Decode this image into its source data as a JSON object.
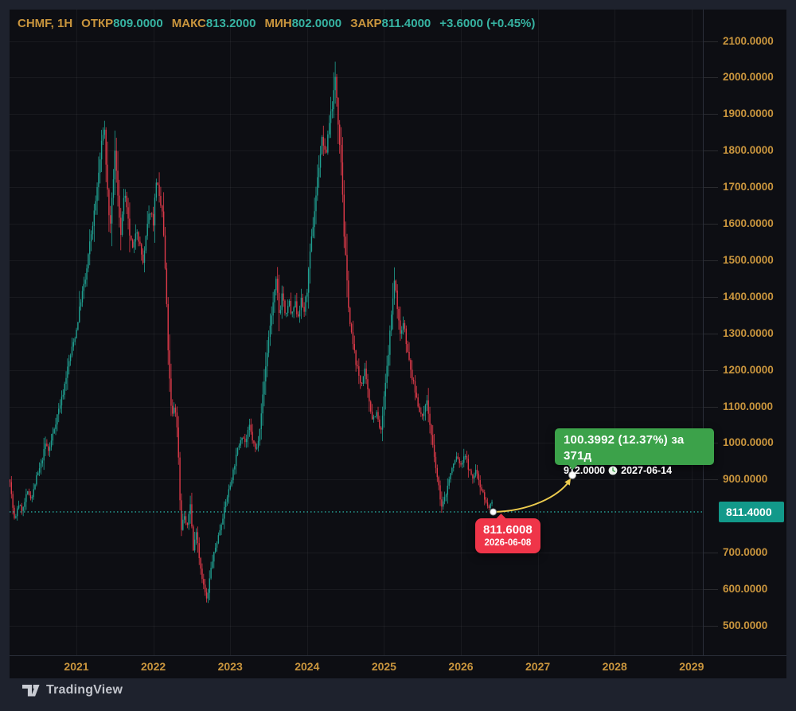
{
  "header": {
    "symbol_interval": "CHMF, 1Н",
    "open_label": "ОТКР",
    "open": "809.0000",
    "high_label": "МАКС",
    "high": "813.2000",
    "low_label": "МИН",
    "low": "802.0000",
    "close_label": "ЗАКР",
    "close": "811.4000",
    "change": "+3.6000 (+0.45%)"
  },
  "price_tag": "811.4000",
  "watermark": "TradingView",
  "forecast": {
    "tooltip_line1": "100.3992 (12.37%) за 371д",
    "tooltip_price": "912.0000",
    "tooltip_date": "2027-06-14",
    "source_price": "811.6008",
    "source_date": "2026-06-08",
    "source_time": 2026.42,
    "source_value": 811.4,
    "target_time": 2027.45,
    "target_value": 912.0
  },
  "colors": {
    "frame_bg": "#1e222d",
    "chart_bg": "#0d0e13",
    "axis_text": "#c9953d",
    "header_value": "#36b3a2",
    "candle_up": "#20a192",
    "candle_down": "#de3a49",
    "grid": "rgba(255,255,255,0.05)",
    "axis_border": "#2a2e39",
    "dotted_line": "#26a69a",
    "price_tag_bg": "#12998a",
    "tooltip_green_bg": "#3ca24a",
    "label_red_bg": "#ef3549",
    "forecast_curve": "#eccb4e",
    "logo_text": "#c2c5cc"
  },
  "chart_data": {
    "type": "candlestick",
    "title": "CHMF, 1Н",
    "interval_label": "1Н",
    "grid": true,
    "x_ticks": [
      2021,
      2022,
      2023,
      2024,
      2025,
      2026,
      2027,
      2028,
      2029
    ],
    "x_tick_labels": [
      "2021",
      "2022",
      "2023",
      "2024",
      "2025",
      "2026",
      "2027",
      "2028",
      "2029"
    ],
    "y_ticks": [
      2100,
      2000,
      1900,
      1800,
      1700,
      1600,
      1500,
      1400,
      1300,
      1200,
      1100,
      1000,
      900,
      811.4,
      700,
      600,
      500
    ],
    "y_tick_labels": [
      "2100.0000",
      "2000.0000",
      "1900.0000",
      "1800.0000",
      "1700.0000",
      "1600.0000",
      "1500.0000",
      "1400.0000",
      "1300.0000",
      "1200.0000",
      "1100.0000",
      "1000.0000",
      "900.0000",
      "811.4000",
      "700.0000",
      "600.0000",
      "500.0000"
    ],
    "xlim": [
      2020.13,
      2029.15
    ],
    "ylim": [
      419,
      2186
    ],
    "current_bar": {
      "open": 809.0,
      "high": 813.2,
      "low": 802.0,
      "close": 811.4
    },
    "candle_interval_years": 0.019230769,
    "noise_seed": 7,
    "base_volatility": 0.01,
    "price_path_anchors": [
      [
        2020.135,
        900
      ],
      [
        2020.16,
        845
      ],
      [
        2020.2,
        780
      ],
      [
        2020.24,
        835
      ],
      [
        2020.3,
        815
      ],
      [
        2020.36,
        865
      ],
      [
        2020.42,
        850
      ],
      [
        2020.48,
        905
      ],
      [
        2020.54,
        940
      ],
      [
        2020.6,
        1000
      ],
      [
        2020.64,
        975
      ],
      [
        2020.7,
        1030
      ],
      [
        2020.76,
        1085
      ],
      [
        2020.82,
        1130
      ],
      [
        2020.88,
        1200
      ],
      [
        2020.94,
        1255
      ],
      [
        2021.0,
        1310
      ],
      [
        2021.06,
        1395
      ],
      [
        2021.12,
        1450
      ],
      [
        2021.18,
        1555
      ],
      [
        2021.24,
        1640
      ],
      [
        2021.3,
        1760
      ],
      [
        2021.36,
        1880
      ],
      [
        2021.4,
        1700
      ],
      [
        2021.44,
        1580
      ],
      [
        2021.5,
        1795
      ],
      [
        2021.54,
        1680
      ],
      [
        2021.58,
        1560
      ],
      [
        2021.62,
        1690
      ],
      [
        2021.66,
        1625
      ],
      [
        2021.7,
        1560
      ],
      [
        2021.74,
        1520
      ],
      [
        2021.78,
        1600
      ],
      [
        2021.82,
        1545
      ],
      [
        2021.87,
        1490
      ],
      [
        2021.92,
        1590
      ],
      [
        2021.96,
        1640
      ],
      [
        2022.0,
        1605
      ],
      [
        2022.04,
        1725
      ],
      [
        2022.08,
        1660
      ],
      [
        2022.12,
        1630
      ],
      [
        2022.16,
        1450
      ],
      [
        2022.2,
        1215
      ],
      [
        2022.24,
        1065
      ],
      [
        2022.28,
        1110
      ],
      [
        2022.32,
        1010
      ],
      [
        2022.36,
        760
      ],
      [
        2022.4,
        805
      ],
      [
        2022.44,
        765
      ],
      [
        2022.48,
        840
      ],
      [
        2022.52,
        705
      ],
      [
        2022.56,
        765
      ],
      [
        2022.6,
        680
      ],
      [
        2022.64,
        625
      ],
      [
        2022.7,
        565
      ],
      [
        2022.74,
        645
      ],
      [
        2022.78,
        690
      ],
      [
        2022.84,
        740
      ],
      [
        2022.9,
        795
      ],
      [
        2022.95,
        845
      ],
      [
        2023.0,
        885
      ],
      [
        2023.05,
        935
      ],
      [
        2023.1,
        985
      ],
      [
        2023.15,
        1025
      ],
      [
        2023.2,
        1000
      ],
      [
        2023.25,
        1045
      ],
      [
        2023.3,
        1000
      ],
      [
        2023.34,
        975
      ],
      [
        2023.38,
        1035
      ],
      [
        2023.42,
        1120
      ],
      [
        2023.46,
        1205
      ],
      [
        2023.5,
        1290
      ],
      [
        2023.55,
        1370
      ],
      [
        2023.6,
        1445
      ],
      [
        2023.64,
        1345
      ],
      [
        2023.68,
        1420
      ],
      [
        2023.72,
        1330
      ],
      [
        2023.76,
        1395
      ],
      [
        2023.8,
        1340
      ],
      [
        2023.84,
        1385
      ],
      [
        2023.88,
        1345
      ],
      [
        2023.92,
        1390
      ],
      [
        2023.96,
        1360
      ],
      [
        2024.0,
        1420
      ],
      [
        2024.05,
        1540
      ],
      [
        2024.1,
        1645
      ],
      [
        2024.15,
        1755
      ],
      [
        2024.2,
        1840
      ],
      [
        2024.24,
        1775
      ],
      [
        2024.28,
        1870
      ],
      [
        2024.33,
        1930
      ],
      [
        2024.37,
        2000
      ],
      [
        2024.41,
        1865
      ],
      [
        2024.45,
        1755
      ],
      [
        2024.48,
        1575
      ],
      [
        2024.52,
        1435
      ],
      [
        2024.56,
        1320
      ],
      [
        2024.6,
        1265
      ],
      [
        2024.65,
        1205
      ],
      [
        2024.7,
        1160
      ],
      [
        2024.75,
        1195
      ],
      [
        2024.8,
        1125
      ],
      [
        2024.85,
        1065
      ],
      [
        2024.9,
        1085
      ],
      [
        2024.96,
        1025
      ],
      [
        2025.0,
        1120
      ],
      [
        2025.05,
        1230
      ],
      [
        2025.1,
        1360
      ],
      [
        2025.14,
        1455
      ],
      [
        2025.18,
        1345
      ],
      [
        2025.22,
        1300
      ],
      [
        2025.26,
        1340
      ],
      [
        2025.3,
        1255
      ],
      [
        2025.35,
        1195
      ],
      [
        2025.4,
        1145
      ],
      [
        2025.45,
        1100
      ],
      [
        2025.5,
        1065
      ],
      [
        2025.55,
        1125
      ],
      [
        2025.6,
        1045
      ],
      [
        2025.65,
        965
      ],
      [
        2025.7,
        895
      ],
      [
        2025.75,
        825
      ],
      [
        2025.8,
        855
      ],
      [
        2025.85,
        905
      ],
      [
        2025.9,
        940
      ],
      [
        2025.95,
        965
      ],
      [
        2026.0,
        935
      ],
      [
        2026.05,
        975
      ],
      [
        2026.1,
        930
      ],
      [
        2026.15,
        900
      ],
      [
        2026.2,
        928
      ],
      [
        2026.25,
        885
      ],
      [
        2026.3,
        855
      ],
      [
        2026.35,
        822
      ],
      [
        2026.4,
        835
      ],
      [
        2026.44,
        811.4
      ]
    ]
  }
}
